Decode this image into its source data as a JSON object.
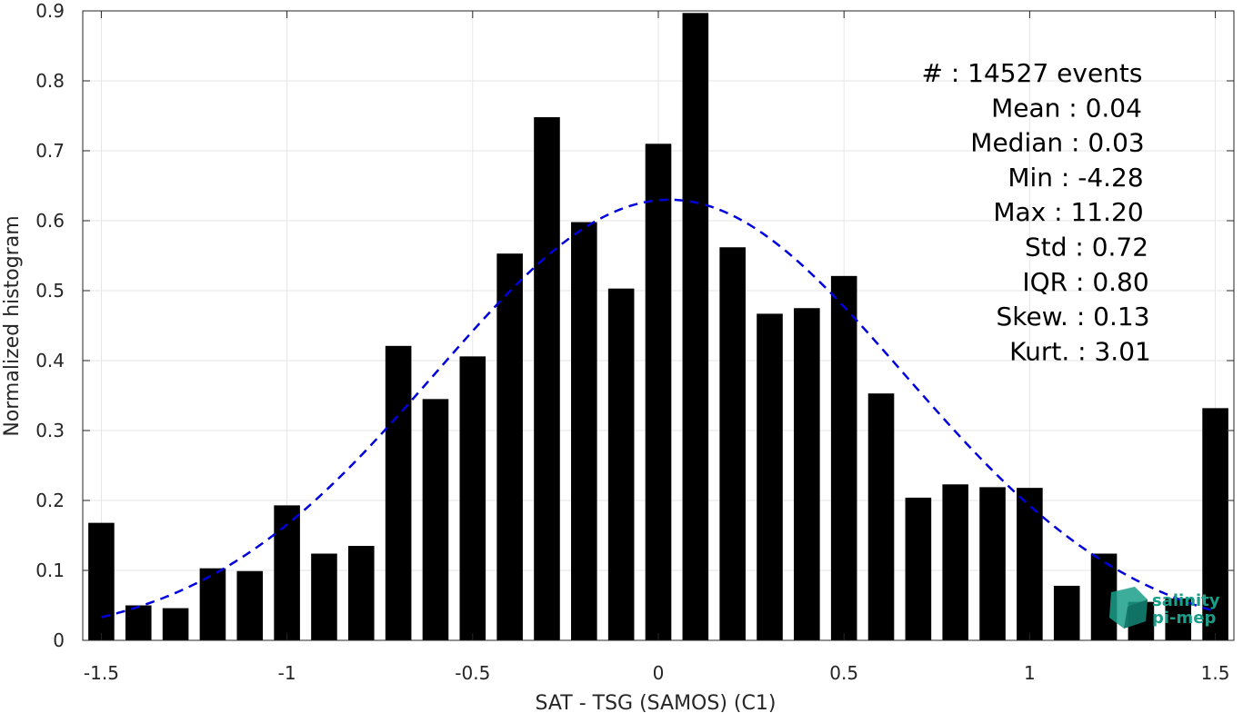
{
  "chart_data": {
    "type": "bar",
    "xlabel": "SAT - TSG (SAMOS) (C1)",
    "ylabel": "Normalized histogram",
    "xlim": [
      -1.55,
      1.55
    ],
    "ylim": [
      0,
      0.9
    ],
    "xticks": [
      -1.5,
      -1,
      -0.5,
      0,
      0.5,
      1,
      1.5
    ],
    "xtick_labels": [
      "-1.5",
      "-1",
      "-0.5",
      "0",
      "0.5",
      "1",
      "1.5"
    ],
    "yticks": [
      0,
      0.1,
      0.2,
      0.3,
      0.4,
      0.5,
      0.6,
      0.7,
      0.8,
      0.9
    ],
    "ytick_labels": [
      "0",
      "0.1",
      "0.2",
      "0.3",
      "0.4",
      "0.5",
      "0.6",
      "0.7",
      "0.8",
      "0.9"
    ],
    "grid": true,
    "bar_width": 0.07,
    "bar_color": "#000000",
    "bins": [
      -1.5,
      -1.4,
      -1.3,
      -1.2,
      -1.1,
      -1.0,
      -0.9,
      -0.8,
      -0.7,
      -0.6,
      -0.5,
      -0.4,
      -0.3,
      -0.2,
      -0.1,
      0.0,
      0.1,
      0.2,
      0.3,
      0.4,
      0.5,
      0.6,
      0.7,
      0.8,
      0.9,
      1.0,
      1.1,
      1.2,
      1.3,
      1.4,
      1.5
    ],
    "values": [
      0.168,
      0.05,
      0.046,
      0.103,
      0.099,
      0.193,
      0.124,
      0.135,
      0.421,
      0.345,
      0.406,
      0.553,
      0.748,
      0.598,
      0.503,
      0.71,
      0.897,
      0.562,
      0.467,
      0.475,
      0.521,
      0.353,
      0.204,
      0.223,
      0.219,
      0.218,
      0.078,
      0.124,
      0.055,
      0.06,
      0.332
    ],
    "fit_curve": {
      "style": "dashed",
      "color": "#0000dd",
      "mean": 0.03,
      "std": 0.63,
      "peak": 0.63,
      "x_range": [
        -1.5,
        1.5
      ]
    },
    "annotations": [
      "#  : 14527 events",
      "Mean : 0.04",
      "Median : 0.03",
      "Min : -4.28",
      "Max : 11.20",
      "Std : 0.72",
      "IQR : 0.80",
      "Skew. : 0.13",
      "Kurt. : 3.01"
    ]
  },
  "logo": {
    "line1": "salinity",
    "line2": "pi-mep",
    "color": "#1a9e8a"
  }
}
